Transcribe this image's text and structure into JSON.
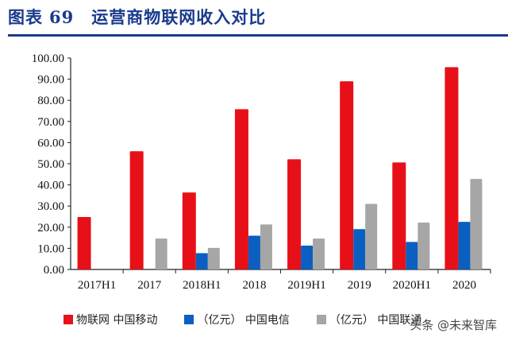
{
  "header": {
    "label": "图表",
    "number": "69",
    "title": "运营商物联网收入对比"
  },
  "watermark": "头条 @未来智库",
  "chart_data": {
    "type": "bar",
    "title": "运营商物联网收入对比",
    "categories": [
      "2017H1",
      "2017",
      "2018H1",
      "2018",
      "2019H1",
      "2019",
      "2020H1",
      "2020"
    ],
    "ylim": [
      0,
      100
    ],
    "yticks": [
      "0.00",
      "10.00",
      "20.00",
      "30.00",
      "40.00",
      "50.00",
      "60.00",
      "70.00",
      "80.00",
      "90.00",
      "100.00"
    ],
    "grid": false,
    "legend_placement": "bottom",
    "series": [
      {
        "name": "物联网 中国移动",
        "color": "#e81018",
        "values": [
          24.8,
          55.9,
          36.4,
          75.8,
          52.1,
          89.0,
          50.6,
          95.7
        ]
      },
      {
        "name": "（亿元） 中国电信",
        "color": "#0a5fc0",
        "values": [
          null,
          null,
          7.7,
          16.0,
          11.3,
          19.1,
          13.0,
          22.5
        ]
      },
      {
        "name": "（亿元） 中国联通",
        "color": "#a6a6a6",
        "values": [
          null,
          14.6,
          10.2,
          21.3,
          14.6,
          31.0,
          22.2,
          42.8
        ]
      }
    ]
  }
}
